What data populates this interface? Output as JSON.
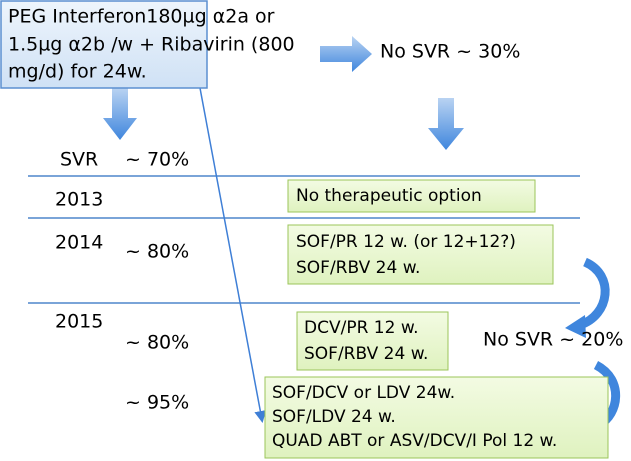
{
  "start_box": {
    "lines": [
      "PEG Interferon180µg α2a or",
      "1.5µg α2b /w + Ribavirin (800",
      "mg/d) for 24w."
    ]
  },
  "no_svr_first": "No SVR ~ 30%",
  "svr_row": {
    "label": "SVR",
    "rate": "~ 70%"
  },
  "rows": [
    {
      "year": "2013",
      "rate": null,
      "options": [
        "No therapeutic option"
      ]
    },
    {
      "year": "2014",
      "rate": "~ 80%",
      "options": [
        "SOF/PR 12 w. (or 12+12?)",
        "SOF/RBV 24 w."
      ]
    },
    {
      "year": "2015",
      "rate": "~ 80%",
      "options": [
        "DCV/PR 12 w.",
        "SOF/RBV 24 w."
      ]
    },
    {
      "year": null,
      "rate": "~ 95%",
      "options": [
        "SOF/DCV or LDV 24w.",
        "SOF/LDV 24 w.",
        "QUAD ABT or ASV/DCV/I Pol 12 w."
      ]
    }
  ],
  "no_svr_second": "No SVR ~ 20%"
}
